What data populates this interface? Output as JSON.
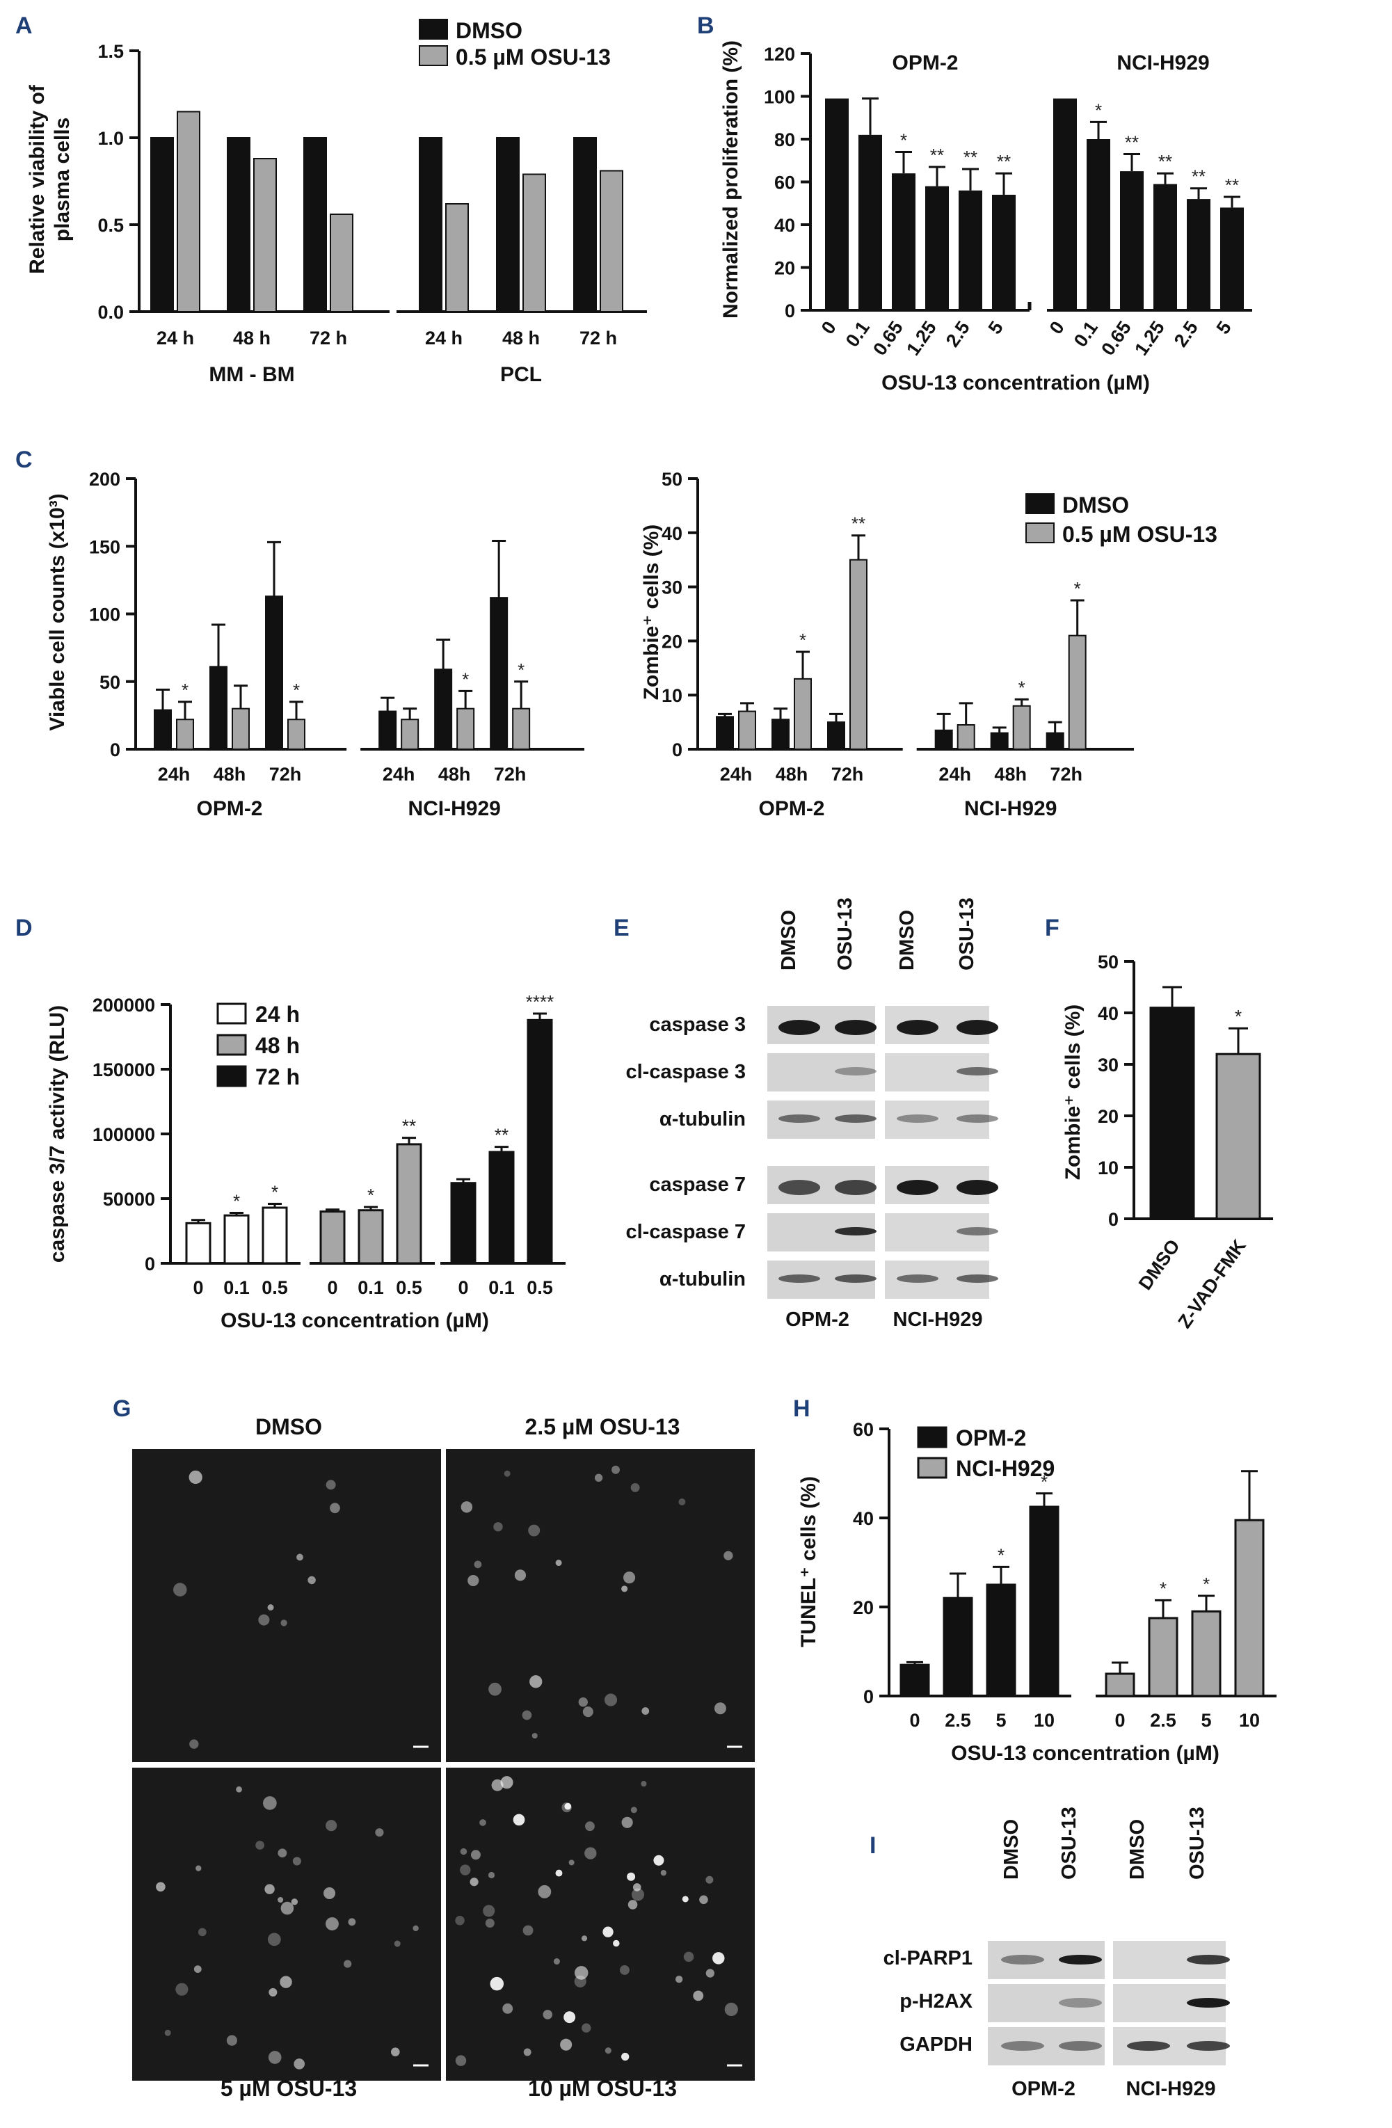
{
  "chart_data": [
    {
      "id": "A",
      "panel_label": "A",
      "type": "bar",
      "ylabel": "Relative viability of plasma cells",
      "ylabel_lines": [
        "Relative viability of",
        "plasma cells"
      ],
      "ylim": [
        0,
        1.5
      ],
      "yticks": [
        "0.0",
        "0.5",
        "1.0",
        "1.5"
      ],
      "legend": [
        "DMSO",
        "0.5 µM OSU-13"
      ],
      "groups": [
        {
          "name": "MM - BM",
          "categories": [
            "24 h",
            "48 h",
            "72 h"
          ]
        },
        {
          "name": "PCL",
          "categories": [
            "24 h",
            "48 h",
            "72 h"
          ]
        }
      ],
      "series": [
        {
          "name": "DMSO",
          "color": "#111111",
          "values": [
            1.0,
            1.0,
            1.0,
            1.0,
            1.0,
            1.0
          ]
        },
        {
          "name": "0.5 µM OSU-13",
          "color": "#a6a6a6",
          "values": [
            1.15,
            0.88,
            0.56,
            0.62,
            0.79,
            0.81
          ]
        }
      ]
    },
    {
      "id": "B",
      "panel_label": "B",
      "type": "bar",
      "ylabel": "Normalized proliferation (%)",
      "xlabel": "OSU-13 concentration (µM)",
      "ylim": [
        0,
        120
      ],
      "yticks": [
        "0",
        "20",
        "40",
        "60",
        "80",
        "100",
        "120"
      ],
      "groups": [
        {
          "name": "OPM-2",
          "categories": [
            "0",
            "0.1",
            "0.65",
            "1.25",
            "2.5",
            "5"
          ],
          "values": [
            99,
            82,
            64,
            58,
            56,
            54
          ],
          "errors": [
            0,
            17,
            10,
            9,
            10,
            10
          ],
          "sig": [
            "",
            "",
            "*",
            "**",
            "**",
            "**"
          ]
        },
        {
          "name": "NCI-H929",
          "categories": [
            "0",
            "0.1",
            "0.65",
            "1.25",
            "2.5",
            "5"
          ],
          "values": [
            99,
            80,
            65,
            59,
            52,
            48
          ],
          "errors": [
            0,
            8,
            8,
            5,
            5,
            5
          ],
          "sig": [
            "",
            "*",
            "**",
            "**",
            "**",
            "**"
          ]
        }
      ]
    },
    {
      "id": "C1",
      "panel_label": "C",
      "type": "bar",
      "ylabel": "Viable cell counts (x10³)",
      "ylim": [
        0,
        200
      ],
      "yticks": [
        "0",
        "50",
        "100",
        "150",
        "200"
      ],
      "groups": [
        {
          "name": "OPM-2",
          "categories": [
            "24h",
            "48h",
            "72h"
          ]
        },
        {
          "name": "NCI-H929",
          "categories": [
            "24h",
            "48h",
            "72h"
          ]
        }
      ],
      "series": [
        {
          "name": "DMSO",
          "color": "#111111",
          "values": [
            29,
            61,
            113,
            28,
            59,
            112
          ],
          "errors": [
            15,
            31,
            40,
            10,
            22,
            42
          ],
          "sig": [
            "",
            "",
            "",
            "",
            "",
            ""
          ]
        },
        {
          "name": "0.5 µM OSU-13",
          "color": "#a6a6a6",
          "values": [
            22,
            30,
            22,
            22,
            30,
            30
          ],
          "errors": [
            13,
            17,
            13,
            8,
            13,
            20
          ],
          "sig": [
            "*",
            "",
            "*",
            "",
            "*",
            "*"
          ]
        }
      ]
    },
    {
      "id": "C2",
      "type": "bar",
      "ylabel": "Zombie⁺ cells (%)",
      "ylim": [
        0,
        50
      ],
      "yticks": [
        "0",
        "10",
        "20",
        "30",
        "40",
        "50"
      ],
      "legend": [
        "DMSO",
        "0.5 µM OSU-13"
      ],
      "groups": [
        {
          "name": "OPM-2",
          "categories": [
            "24h",
            "48h",
            "72h"
          ]
        },
        {
          "name": "NCI-H929",
          "categories": [
            "24h",
            "48h",
            "72h"
          ]
        }
      ],
      "series": [
        {
          "name": "DMSO",
          "color": "#111111",
          "values": [
            6,
            5.5,
            5,
            3.5,
            3,
            3
          ],
          "errors": [
            0.5,
            2,
            1.5,
            3,
            1,
            2
          ],
          "sig": [
            "",
            "",
            "",
            "",
            "",
            ""
          ]
        },
        {
          "name": "0.5 µM OSU-13",
          "color": "#a6a6a6",
          "values": [
            7,
            13,
            35,
            4.5,
            8,
            21
          ],
          "errors": [
            1.5,
            5,
            4.5,
            4,
            1.2,
            6.5
          ],
          "sig": [
            "",
            "*",
            "**",
            "",
            "*",
            "*"
          ]
        }
      ]
    },
    {
      "id": "D",
      "panel_label": "D",
      "type": "bar",
      "ylabel": "caspase 3/7 activity (RLU)",
      "xlabel": "OSU-13 concentration (µM)",
      "ylim": [
        0,
        200000
      ],
      "yticks": [
        "0",
        "50000",
        "100000",
        "150000",
        "200000"
      ],
      "legend": [
        {
          "name": "24 h",
          "color": "#ffffff"
        },
        {
          "name": "48 h",
          "color": "#a6a6a6"
        },
        {
          "name": "72 h",
          "color": "#111111"
        }
      ],
      "groups": [
        {
          "name": "24 h",
          "color": "#ffffff",
          "categories": [
            "0",
            "0.1",
            "0.5"
          ],
          "values": [
            31000,
            37000,
            43000
          ],
          "errors": [
            2500,
            2000,
            3000
          ],
          "sig": [
            "",
            "*",
            "*"
          ]
        },
        {
          "name": "48 h",
          "color": "#a6a6a6",
          "categories": [
            "0",
            "0.1",
            "0.5"
          ],
          "values": [
            40000,
            41000,
            92000
          ],
          "errors": [
            1500,
            2500,
            5000
          ],
          "sig": [
            "",
            "*",
            "**"
          ]
        },
        {
          "name": "72 h",
          "color": "#111111",
          "categories": [
            "0",
            "0.1",
            "0.5"
          ],
          "values": [
            62000,
            86000,
            188000
          ],
          "errors": [
            3000,
            4000,
            5000
          ],
          "sig": [
            "",
            "**",
            "****"
          ]
        }
      ]
    },
    {
      "id": "F",
      "panel_label": "F",
      "type": "bar",
      "ylabel": "Zombie⁺ cells (%)",
      "ylim": [
        0,
        50
      ],
      "yticks": [
        "0",
        "10",
        "20",
        "30",
        "40",
        "50"
      ],
      "categories": [
        "DMSO",
        "Z-VAD-FMK"
      ],
      "colors": [
        "#111111",
        "#a6a6a6"
      ],
      "values": [
        41,
        32
      ],
      "errors": [
        4,
        5
      ],
      "sig": [
        "",
        "*"
      ]
    },
    {
      "id": "H",
      "panel_label": "H",
      "type": "bar",
      "ylabel": "TUNEL⁺ cells (%)",
      "xlabel": "OSU-13 concentration (µM)",
      "ylim": [
        0,
        60
      ],
      "yticks": [
        "0",
        "20",
        "40",
        "60"
      ],
      "legend": [
        {
          "name": "OPM-2",
          "color": "#111111"
        },
        {
          "name": "NCI-H929",
          "color": "#a6a6a6"
        }
      ],
      "groups": [
        {
          "name": "OPM-2",
          "color": "#111111",
          "categories": [
            "0",
            "2.5",
            "5",
            "10"
          ],
          "values": [
            7,
            22,
            25,
            42.5
          ],
          "errors": [
            0.6,
            5.5,
            4,
            3
          ],
          "sig": [
            "",
            "",
            "*",
            "*"
          ]
        },
        {
          "name": "NCI-H929",
          "color": "#a6a6a6",
          "categories": [
            "0",
            "2.5",
            "5",
            "10"
          ],
          "values": [
            5,
            17.5,
            19,
            39.5
          ],
          "errors": [
            2.5,
            4,
            3.5,
            11
          ],
          "sig": [
            "",
            "*",
            "*",
            ""
          ]
        }
      ]
    }
  ],
  "blots": {
    "E": {
      "panel_label": "E",
      "lanes": [
        "DMSO",
        "OSU-13",
        "DMSO",
        "OSU-13"
      ],
      "cell_lines": [
        "OPM-2",
        "NCI-H929"
      ],
      "rows_top": [
        "caspase 3",
        "cl-caspase 3",
        "α-tubulin"
      ],
      "rows_bottom": [
        "caspase 7",
        "cl-caspase 7",
        "α-tubulin"
      ]
    },
    "I": {
      "panel_label": "I",
      "lanes": [
        "DMSO",
        "OSU-13",
        "DMSO",
        "OSU-13"
      ],
      "cell_lines": [
        "OPM-2",
        "NCI-H929"
      ],
      "rows": [
        "cl-PARP1",
        "p-H2AX",
        "GAPDH"
      ]
    }
  },
  "micrographs": {
    "panel_label": "G",
    "titles": [
      "DMSO",
      "2.5 µM OSU-13",
      "5 µM OSU-13",
      "10 µM OSU-13"
    ]
  }
}
